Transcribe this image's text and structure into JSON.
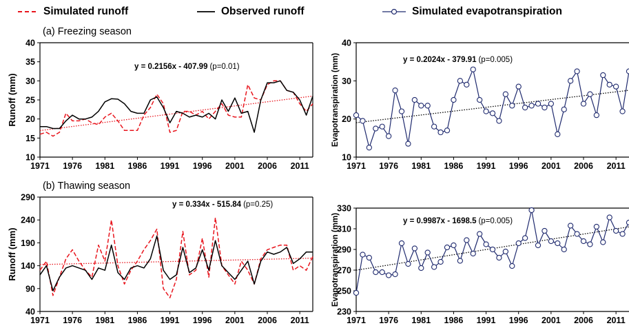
{
  "legend": {
    "simulated_runoff": "Simulated runoff",
    "observed_runoff": "Observed runoff",
    "simulated_et": "Simulated  evapotranspiration"
  },
  "panels": {
    "a_label": "(a) Freezing season",
    "b_label": "(b) Thawing season"
  },
  "colors": {
    "simulated_runoff": "#e8141c",
    "observed_runoff": "#000000",
    "et_line": "#1f2a6e",
    "et_marker_fill": "#ffffff",
    "trend": "#000000"
  },
  "chart_data": [
    {
      "type": "line",
      "panel": "(a) Freezing season",
      "ylabel": "Runoff (mm)",
      "ylim": [
        10,
        40
      ],
      "yticks": [
        10,
        15,
        20,
        25,
        30,
        35,
        40
      ],
      "xlim": [
        1971,
        2013
      ],
      "xticks": [
        1971,
        1976,
        1981,
        1986,
        1991,
        1996,
        2001,
        2006,
        2011
      ],
      "x": [
        1971,
        1972,
        1973,
        1974,
        1975,
        1976,
        1977,
        1978,
        1979,
        1980,
        1981,
        1982,
        1983,
        1984,
        1985,
        1986,
        1987,
        1988,
        1989,
        1990,
        1991,
        1992,
        1993,
        1994,
        1995,
        1996,
        1997,
        1998,
        1999,
        2000,
        2001,
        2002,
        2003,
        2004,
        2005,
        2006,
        2007,
        2008,
        2009,
        2010,
        2011,
        2012,
        2013
      ],
      "series": [
        {
          "name": "Simulated runoff",
          "style": "dashed",
          "color_key": "simulated_runoff",
          "values": [
            16,
            16.5,
            15.5,
            16.5,
            21.5,
            19.5,
            19.5,
            20,
            19,
            18.5,
            20.5,
            21.5,
            19.5,
            17,
            17,
            17,
            21,
            23,
            26.5,
            24,
            16.5,
            17,
            22,
            22,
            21,
            22,
            20,
            22,
            24,
            21,
            20.5,
            20.5,
            29,
            25.5,
            25,
            29,
            30,
            30,
            27.5,
            27,
            24,
            22,
            24
          ]
        },
        {
          "name": "Observed runoff",
          "style": "solid",
          "color_key": "observed_runoff",
          "values": [
            18,
            18,
            17.5,
            17.5,
            19.5,
            21,
            20,
            20,
            20.5,
            22,
            24.5,
            25.3,
            25.2,
            24,
            22,
            21.5,
            21.5,
            25,
            25.8,
            23,
            19,
            22,
            21.5,
            20.5,
            21,
            20.5,
            21.5,
            20,
            25,
            22,
            25.5,
            21.5,
            22,
            16.5,
            25,
            29.5,
            29.5,
            30,
            27.5,
            27,
            25,
            21,
            26
          ]
        }
      ],
      "trend": {
        "slope": 0.2156,
        "intercept": -407.99,
        "style": "dotted",
        "color_key": "simulated_runoff"
      },
      "equation": "y = 0.2156x - 407.99",
      "pvalue": "(p=0.01)"
    },
    {
      "type": "line",
      "panel": "evapotranspiration-freezing",
      "ylabel": "Evapotranspiration  (mm)",
      "ylim": [
        10,
        40
      ],
      "yticks": [
        10,
        20,
        30,
        40
      ],
      "xlim": [
        1971,
        2013
      ],
      "xticks": [
        1971,
        1976,
        1981,
        1986,
        1991,
        1996,
        2001,
        2006,
        2011
      ],
      "x": [
        1971,
        1972,
        1973,
        1974,
        1975,
        1976,
        1977,
        1978,
        1979,
        1980,
        1981,
        1982,
        1983,
        1984,
        1985,
        1986,
        1987,
        1988,
        1989,
        1990,
        1991,
        1992,
        1993,
        1994,
        1995,
        1996,
        1997,
        1998,
        1999,
        2000,
        2001,
        2002,
        2003,
        2004,
        2005,
        2006,
        2007,
        2008,
        2009,
        2010,
        2011,
        2012,
        2013
      ],
      "series": [
        {
          "name": "Simulated  evapotranspiration",
          "style": "solid-marker",
          "color_key": "et_line",
          "values": [
            21,
            19.5,
            12.5,
            17.5,
            18,
            15.5,
            27.5,
            22,
            13.5,
            25,
            23.5,
            23.5,
            18,
            16.5,
            17,
            25,
            30,
            29,
            33,
            25,
            22,
            21.5,
            19.5,
            26.5,
            23.5,
            28.5,
            23,
            23.5,
            24,
            23,
            24,
            16,
            22.5,
            30,
            32.5,
            24,
            26.5,
            21,
            31.5,
            29,
            28.5,
            22,
            32.5
          ]
        }
      ],
      "trend": {
        "slope": 0.2024,
        "intercept": -379.91,
        "style": "dotted",
        "color_key": "trend"
      },
      "equation": "y = 0.2024x - 379.91",
      "pvalue": "(p=0.005)"
    },
    {
      "type": "line",
      "panel": "(b) Thawing season",
      "ylabel": "Runoff (mm)",
      "ylim": [
        40,
        290
      ],
      "yticks": [
        40,
        90,
        140,
        190,
        240,
        290
      ],
      "xlim": [
        1971,
        2013
      ],
      "xticks": [
        1971,
        1976,
        1981,
        1986,
        1991,
        1996,
        2001,
        2006,
        2011
      ],
      "x": [
        1971,
        1972,
        1973,
        1974,
        1975,
        1976,
        1977,
        1978,
        1979,
        1980,
        1981,
        1982,
        1983,
        1984,
        1985,
        1986,
        1987,
        1988,
        1989,
        1990,
        1991,
        1992,
        1993,
        1994,
        1995,
        1996,
        1997,
        1998,
        1999,
        2000,
        2001,
        2002,
        2003,
        2004,
        2005,
        2006,
        2007,
        2008,
        2009,
        2010,
        2011,
        2012,
        2013
      ],
      "series": [
        {
          "name": "Simulated runoff",
          "style": "dashed",
          "color_key": "simulated_runoff",
          "values": [
            130,
            150,
            75,
            115,
            155,
            175,
            150,
            130,
            115,
            185,
            150,
            240,
            140,
            100,
            130,
            150,
            175,
            195,
            220,
            90,
            70,
            110,
            215,
            120,
            130,
            200,
            115,
            245,
            140,
            120,
            100,
            150,
            130,
            100,
            155,
            175,
            180,
            185,
            185,
            130,
            140,
            130,
            160
          ]
        },
        {
          "name": "Observed runoff",
          "style": "solid",
          "color_key": "observed_runoff",
          "values": [
            120,
            140,
            85,
            115,
            135,
            140,
            135,
            130,
            110,
            135,
            130,
            185,
            125,
            110,
            135,
            140,
            135,
            155,
            205,
            130,
            110,
            120,
            180,
            125,
            135,
            175,
            130,
            195,
            140,
            125,
            110,
            130,
            150,
            100,
            150,
            170,
            165,
            170,
            180,
            145,
            155,
            170,
            170
          ]
        }
      ],
      "trend": {
        "slope": 0.334,
        "intercept": -515.84,
        "style": "dotted",
        "color_key": "simulated_runoff"
      },
      "equation": "y = 0.334x - 515.84",
      "pvalue": "(p=0.25)"
    },
    {
      "type": "line",
      "panel": "evapotranspiration-thawing",
      "ylabel": "Evapotranspiration  (mm)",
      "ylim": [
        230,
        330
      ],
      "yticks": [
        230,
        250,
        270,
        290,
        310,
        330
      ],
      "xlim": [
        1971,
        2013
      ],
      "xticks": [
        1971,
        1976,
        1981,
        1986,
        1991,
        1996,
        2001,
        2006,
        2011
      ],
      "x": [
        1971,
        1972,
        1973,
        1974,
        1975,
        1976,
        1977,
        1978,
        1979,
        1980,
        1981,
        1982,
        1983,
        1984,
        1985,
        1986,
        1987,
        1988,
        1989,
        1990,
        1991,
        1992,
        1993,
        1994,
        1995,
        1996,
        1997,
        1998,
        1999,
        2000,
        2001,
        2002,
        2003,
        2004,
        2005,
        2006,
        2007,
        2008,
        2009,
        2010,
        2011,
        2012,
        2013
      ],
      "series": [
        {
          "name": "Simulated  evapotranspiration",
          "style": "solid-marker",
          "color_key": "et_line",
          "values": [
            248,
            285,
            282,
            268,
            268,
            265,
            266,
            296,
            276,
            291,
            272,
            287,
            273,
            278,
            292,
            294,
            279,
            299,
            286,
            305,
            295,
            290,
            282,
            288,
            274,
            296,
            301,
            328,
            294,
            308,
            298,
            296,
            290,
            313,
            305,
            298,
            295,
            312,
            297,
            321,
            308,
            305,
            316
          ]
        }
      ],
      "trend": {
        "slope": 0.9987,
        "intercept": -1698.5,
        "style": "dotted",
        "color_key": "trend"
      },
      "equation": "y = 0.9987x - 1698.5",
      "pvalue": "(p=0.005)"
    }
  ]
}
